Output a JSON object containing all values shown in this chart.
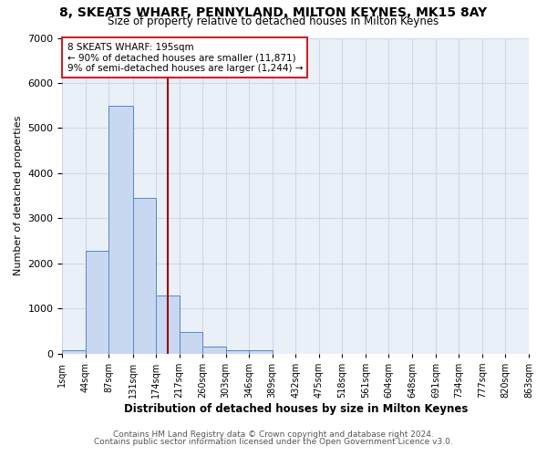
{
  "title": "8, SKEATS WHARF, PENNYLAND, MILTON KEYNES, MK15 8AY",
  "subtitle": "Size of property relative to detached houses in Milton Keynes",
  "xlabel": "Distribution of detached houses by size in Milton Keynes",
  "ylabel": "Number of detached properties",
  "bin_edges": [
    1,
    44,
    87,
    131,
    174,
    217,
    260,
    303,
    346,
    389,
    432,
    475,
    518,
    561,
    604,
    648,
    691,
    734,
    777,
    820,
    863
  ],
  "bar_heights": [
    80,
    2280,
    5500,
    3450,
    1300,
    480,
    160,
    80,
    80,
    0,
    0,
    0,
    0,
    0,
    0,
    0,
    0,
    0,
    0,
    0
  ],
  "bar_color": "#c8d8f0",
  "bar_edge_color": "#5588cc",
  "grid_color": "#d0d8e8",
  "plot_bg_color": "#eaf0f8",
  "fig_bg_color": "#ffffff",
  "vline_x": 195,
  "vline_color": "#990000",
  "ylim": [
    0,
    7000
  ],
  "yticks": [
    0,
    1000,
    2000,
    3000,
    4000,
    5000,
    6000,
    7000
  ],
  "annotation_text": "8 SKEATS WHARF: 195sqm\n← 90% of detached houses are smaller (11,871)\n9% of semi-detached houses are larger (1,244) →",
  "annotation_box_color": "white",
  "annotation_box_edge": "#cc2222",
  "footer_line1": "Contains HM Land Registry data © Crown copyright and database right 2024.",
  "footer_line2": "Contains public sector information licensed under the Open Government Licence v3.0.",
  "tick_labels": [
    "1sqm",
    "44sqm",
    "87sqm",
    "131sqm",
    "174sqm",
    "217sqm",
    "260sqm",
    "303sqm",
    "346sqm",
    "389sqm",
    "432sqm",
    "475sqm",
    "518sqm",
    "561sqm",
    "604sqm",
    "648sqm",
    "691sqm",
    "734sqm",
    "777sqm",
    "820sqm",
    "863sqm"
  ]
}
